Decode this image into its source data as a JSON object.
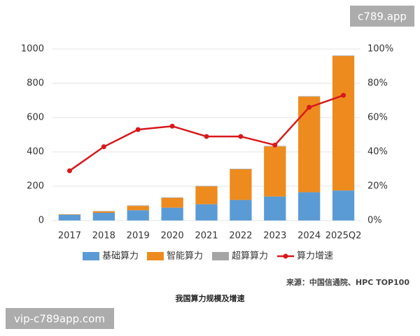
{
  "chart_data": {
    "type": "bar",
    "stacked": true,
    "categories": [
      "2017",
      "2018",
      "2019",
      "2020",
      "2021",
      "2022",
      "2023",
      "2024",
      "2025Q2"
    ],
    "series": [
      {
        "name": "基础算力",
        "type": "bar",
        "color": "#5b9bd5",
        "values": [
          33,
          45,
          60,
          75,
          95,
          120,
          140,
          165,
          175
        ]
      },
      {
        "name": "智能算力",
        "type": "bar",
        "color": "#ed8b1e",
        "values": [
          2,
          8,
          25,
          57,
          104,
          179,
          292,
          557,
          784
        ]
      },
      {
        "name": "超算算力",
        "type": "bar",
        "color": "#a5a5a5",
        "values": [
          2,
          2,
          3,
          3,
          3,
          3,
          3,
          3,
          3
        ]
      },
      {
        "name": "算力增速",
        "type": "line",
        "axis": "y2",
        "color": "#d7191c",
        "values": [
          29,
          43,
          53,
          55,
          49,
          49,
          44,
          66,
          73
        ]
      }
    ],
    "ylim": [
      0,
      1000
    ],
    "yticks": [
      0,
      200,
      400,
      600,
      800,
      1000
    ],
    "y2lim": [
      0,
      100
    ],
    "y2ticks": [
      {
        "value": 0,
        "label": "0%"
      },
      {
        "value": 20,
        "label": "20%"
      },
      {
        "value": 40,
        "label": "40%"
      },
      {
        "value": 60,
        "label": "60%"
      },
      {
        "value": 80,
        "label": "80%"
      },
      {
        "value": 100,
        "label": "100%"
      }
    ],
    "grid": true,
    "source": "来源：中国信通院、HPC TOP100",
    "caption": "我国算力规模及增速"
  },
  "watermarks": [
    "c789.app",
    "vip-c789app.com"
  ]
}
